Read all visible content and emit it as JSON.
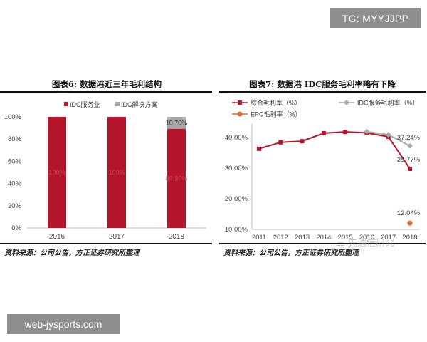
{
  "overlay": {
    "tag": "TG: MYYJJPP",
    "site": "web-jysports.com",
    "watermark": "三 先通信研究"
  },
  "colors": {
    "red": "#b5152b",
    "gray": "#a8a8a8",
    "orange": "#e5642b",
    "text_dark": "#222222"
  },
  "chart_data": [
    {
      "type": "bar",
      "title": "图表6:   数据港近三年毛利结构",
      "source": "资料来源：公司公告，方正证券研究所整理",
      "categories": [
        "2016",
        "2017",
        "2018"
      ],
      "stacked": true,
      "series": [
        {
          "name": "IDC服务业",
          "color": "#b5152b",
          "values": [
            100,
            100,
            89.3
          ],
          "labels": [
            "100%",
            "100%",
            "89.30%"
          ]
        },
        {
          "name": "IDC解决方案",
          "color": "#a8a8a8",
          "values": [
            0,
            0,
            10.7
          ],
          "labels": [
            "",
            "",
            "10.70%"
          ]
        }
      ],
      "ylim": [
        0,
        100
      ],
      "yticks": [
        "0%",
        "20%",
        "40%",
        "60%",
        "80%",
        "100%"
      ],
      "legend": "top-center",
      "grid": false
    },
    {
      "type": "line",
      "title": "图表7:   数据港 IDC服务毛利率略有下降",
      "source": "资料来源：公司公告，方正证券研究所整理",
      "x": [
        "2011",
        "2012",
        "2013",
        "2014",
        "2015",
        "2016",
        "2017",
        "2018"
      ],
      "series": [
        {
          "name": "综合毛利率（%）",
          "color": "#b5152b",
          "marker": "square",
          "values": [
            36.3,
            38.4,
            38.8,
            41.4,
            41.8,
            41.5,
            40.2,
            29.77
          ],
          "labels": {
            "7": "29.77%"
          }
        },
        {
          "name": "IDC服务毛利率（%）",
          "color": "#a8a8a8",
          "marker": "diamond",
          "values": [
            null,
            null,
            null,
            null,
            null,
            41.9,
            40.9,
            37.24
          ],
          "labels": {
            "7": "37.24%"
          }
        },
        {
          "name": "EPC毛利率（%）",
          "color": "#e5642b",
          "marker": "circle",
          "values": [
            null,
            null,
            null,
            null,
            null,
            null,
            null,
            12.04
          ],
          "labels": {
            "7": "12.04%"
          }
        }
      ],
      "ylim": [
        10,
        43
      ],
      "yticks": [
        {
          "value": 10,
          "label": "10.00%"
        },
        {
          "value": 20,
          "label": "20.00%"
        },
        {
          "value": 30,
          "label": "30.00%"
        },
        {
          "value": 40,
          "label": "40.00%"
        }
      ],
      "legend": "top",
      "grid": false
    }
  ]
}
